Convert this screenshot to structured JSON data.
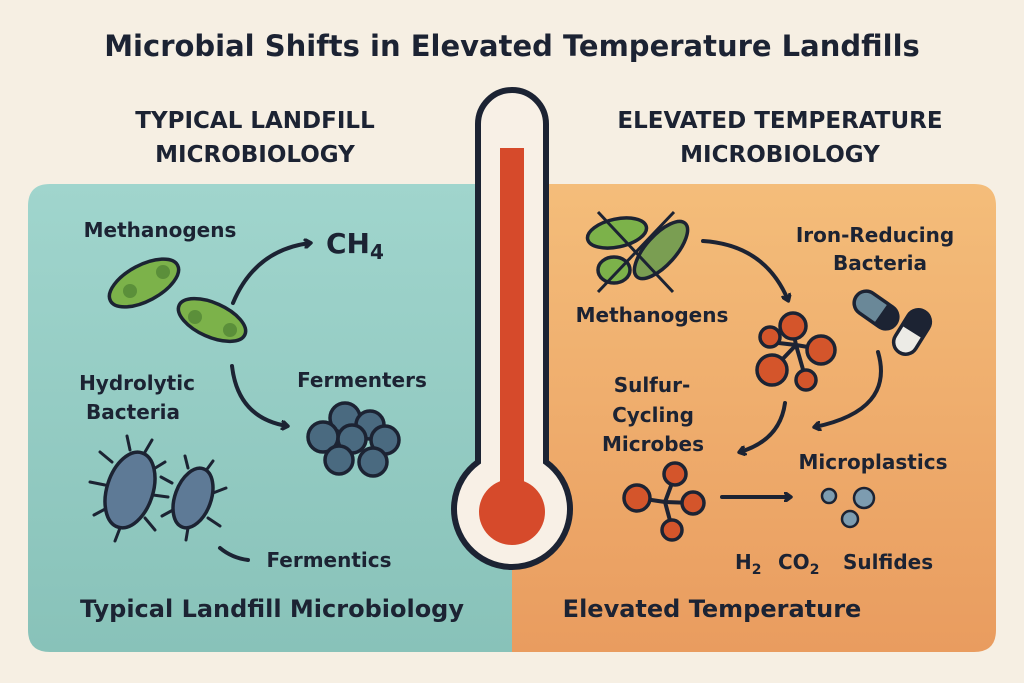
{
  "title": "Microbial Shifts in Elevated Temperature Landfills",
  "left": {
    "heading": [
      "TYPICAL LANDFILL",
      "MICROBIOLOGY"
    ],
    "labels": {
      "methanogens": "Methanogens",
      "ch4": "CH",
      "ch4_sub": "4",
      "hydrolytic": [
        "Hydrolytic",
        "Bacteria"
      ],
      "fermenters": "Fermenters",
      "fermentics": "Fermentics"
    },
    "footer": "Typical Landfill Microbiology"
  },
  "right": {
    "heading": [
      "ELEVATED TEMPERATURE",
      "MICROBIOLOGY"
    ],
    "labels": {
      "methanogens": "Methanogens",
      "iron": [
        "Iron-Reducing",
        "Bacteria"
      ],
      "sulfur": [
        "Sulfur-",
        "Cycling",
        "Microbes"
      ],
      "microplastics": "Microplastics",
      "h2": "H",
      "h2_sub": "2",
      "co2": "CO",
      "co2_sub": "2",
      "sulfides": "Sulfides"
    },
    "footer": "Elevated Temperature"
  },
  "colors": {
    "left_panel": "#97cec6",
    "right_panel": "#efad6d",
    "thermometer_red": "#d64a2b",
    "methanogen_green": "#7cb24a",
    "fermenter_blue": "#4a6a80",
    "hydrolytic_blue": "#5e7a96",
    "orange_cluster": "#d4552b",
    "microplastic_blue": "#7d9cb0"
  }
}
